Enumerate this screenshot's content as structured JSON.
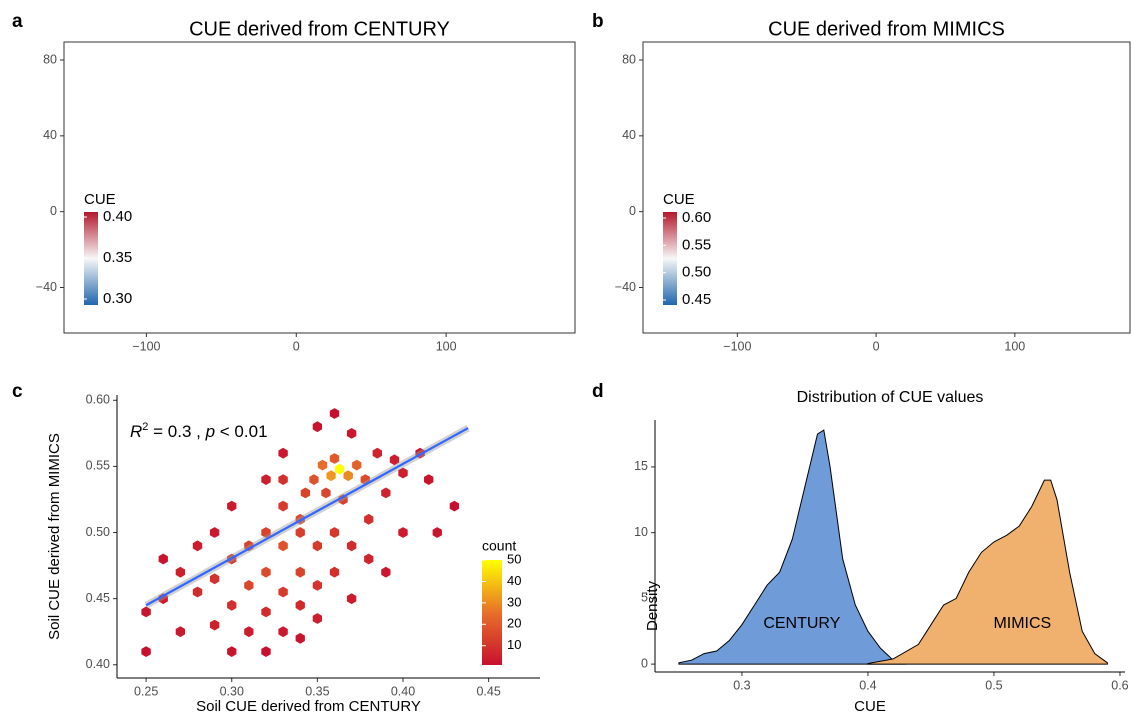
{
  "chart_data": [
    {
      "type": "map",
      "panel_label": "a",
      "title": "CUE derived from CENTURY",
      "xlim": [
        -155,
        186
      ],
      "ylim": [
        -64,
        89.5
      ],
      "xticks": [
        {
          "value": -100,
          "label": "−100"
        },
        0,
        100
      ],
      "yticks": [
        {
          "value": -40,
          "label": "−40"
        },
        0,
        40,
        80
      ],
      "panel_border": true,
      "legend": {
        "title": "CUE",
        "ticks": [
          {
            "value": 0.4,
            "label": "0.40"
          },
          0.35,
          {
            "value": 0.3,
            "label": "0.30"
          }
        ],
        "colors": [
          "#2166ac",
          "#f7f7f7",
          "#b2182b"
        ]
      }
    },
    {
      "type": "map",
      "panel_label": "b",
      "title": "CUE derived from MIMICS",
      "xlim": [
        -168,
        183
      ],
      "ylim": [
        -64,
        89.5
      ],
      "xticks": [
        {
          "value": -100,
          "label": "−100"
        },
        0,
        100
      ],
      "yticks": [
        {
          "value": -40,
          "label": "−40"
        },
        0,
        40,
        80
      ],
      "panel_border": true,
      "legend": {
        "title": "CUE",
        "ticks": [
          {
            "value": 0.6,
            "label": "0.60"
          },
          0.55,
          {
            "value": 0.5,
            "label": "0.50"
          },
          0.45
        ],
        "colors": [
          "#2166ac",
          "#f7f7f7",
          "#b2182b"
        ]
      }
    },
    {
      "type": "hexbin",
      "panel_label": "c",
      "x_label": "Soil CUE derived from CENTURY",
      "y_label": "Soil CUE derived from MIMICS",
      "annotation": [
        "R",
        "2",
        " = 0.3 , ",
        "p",
        " < 0.01"
      ],
      "xlim": [
        0.233,
        0.48
      ],
      "ylim": [
        0.39,
        0.604
      ],
      "xticks": [
        0.25,
        {
          "value": 0.3,
          "label": "0.30"
        },
        0.35,
        {
          "value": 0.4,
          "label": "0.40"
        },
        0.45
      ],
      "yticks": [
        {
          "value": 0.4,
          "label": "0.40"
        },
        0.45,
        {
          "value": 0.5,
          "label": "0.50"
        },
        0.55,
        {
          "value": 0.6,
          "label": "0.60"
        }
      ],
      "hexbins": {
        "x": [
          0.363,
          0.358,
          0.368,
          0.353,
          0.373,
          0.36,
          0.348,
          0.378,
          0.343,
          0.355,
          0.365,
          0.33,
          0.34,
          0.32,
          0.31,
          0.33,
          0.3,
          0.32,
          0.34,
          0.29,
          0.31,
          0.33,
          0.35,
          0.28,
          0.3,
          0.32,
          0.34,
          0.36,
          0.37,
          0.38,
          0.39,
          0.4,
          0.41,
          0.26,
          0.25,
          0.25,
          0.27,
          0.29,
          0.31,
          0.33,
          0.3,
          0.32,
          0.34,
          0.35,
          0.37,
          0.39,
          0.4,
          0.42,
          0.43,
          0.35,
          0.36,
          0.37,
          0.33,
          0.32,
          0.3,
          0.28,
          0.27,
          0.38,
          0.36,
          0.35,
          0.34,
          0.33,
          0.385,
          0.395,
          0.415,
          0.29,
          0.26
        ],
        "y": [
          0.548,
          0.543,
          0.543,
          0.551,
          0.551,
          0.556,
          0.54,
          0.54,
          0.53,
          0.53,
          0.525,
          0.52,
          0.51,
          0.5,
          0.49,
          0.49,
          0.48,
          0.47,
          0.47,
          0.465,
          0.46,
          0.455,
          0.46,
          0.455,
          0.445,
          0.44,
          0.445,
          0.47,
          0.49,
          0.51,
          0.53,
          0.545,
          0.56,
          0.45,
          0.44,
          0.41,
          0.425,
          0.43,
          0.425,
          0.425,
          0.41,
          0.41,
          0.42,
          0.435,
          0.45,
          0.47,
          0.5,
          0.5,
          0.52,
          0.58,
          0.59,
          0.575,
          0.56,
          0.54,
          0.52,
          0.49,
          0.47,
          0.48,
          0.5,
          0.49,
          0.5,
          0.54,
          0.56,
          0.555,
          0.54,
          0.5,
          0.48
        ],
        "count": [
          50,
          32,
          30,
          25,
          22,
          20,
          18,
          16,
          14,
          15,
          13,
          12,
          15,
          14,
          13,
          18,
          12,
          16,
          14,
          10,
          15,
          12,
          10,
          8,
          9,
          8,
          7,
          9,
          8,
          9,
          6,
          5,
          3,
          4,
          2,
          1,
          3,
          5,
          4,
          3,
          2,
          1,
          2,
          5,
          4,
          3,
          4,
          2,
          1,
          2,
          1,
          3,
          3,
          5,
          3,
          4,
          5,
          6,
          11,
          12,
          13,
          9,
          6,
          4,
          2,
          3,
          2
        ]
      },
      "colors": [
        "#c8102e",
        "#e8702a",
        "#ffff00"
      ],
      "fit": {
        "x": [
          0.25,
          0.438
        ],
        "y": [
          0.445,
          0.579
        ],
        "color": "#3366ff"
      },
      "legend": {
        "title": "count",
        "ticks": [
          10,
          20,
          30,
          40,
          50
        ]
      }
    },
    {
      "type": "density",
      "panel_label": "d",
      "title": "Distribution of CUE values",
      "x_label": "CUE",
      "y_label": "Density",
      "xlim": [
        0.231,
        0.604
      ],
      "ylim": [
        -0.6,
        18.57
      ],
      "xticks": [
        0.3,
        0.4,
        0.5,
        0.6
      ],
      "yticks": [
        0,
        5,
        10,
        15
      ],
      "series": [
        {
          "name": "CENTURY",
          "color": "#6f9bd9",
          "x": [
            0.25,
            0.26,
            0.27,
            0.28,
            0.29,
            0.3,
            0.31,
            0.32,
            0.33,
            0.34,
            0.35,
            0.36,
            0.365,
            0.37,
            0.38,
            0.39,
            0.4,
            0.41,
            0.42,
            0.43
          ],
          "values": [
            0.1,
            0.3,
            0.8,
            1.0,
            1.8,
            3.0,
            4.5,
            6.0,
            7.0,
            9.5,
            13.5,
            17.5,
            17.8,
            15,
            8,
            4.5,
            2.5,
            1.2,
            0.3,
            0.05
          ]
        },
        {
          "name": "MIMICS",
          "color": "#f0b06e",
          "x": [
            0.4,
            0.42,
            0.44,
            0.45,
            0.46,
            0.47,
            0.48,
            0.49,
            0.5,
            0.51,
            0.52,
            0.53,
            0.54,
            0.545,
            0.55,
            0.56,
            0.57,
            0.58,
            0.59
          ],
          "values": [
            0.05,
            0.4,
            1.5,
            3.0,
            4.5,
            5.0,
            7.0,
            8.5,
            9.3,
            9.8,
            10.5,
            12,
            14,
            14.0,
            12.5,
            7,
            2.5,
            0.8,
            0.1
          ]
        }
      ]
    }
  ]
}
